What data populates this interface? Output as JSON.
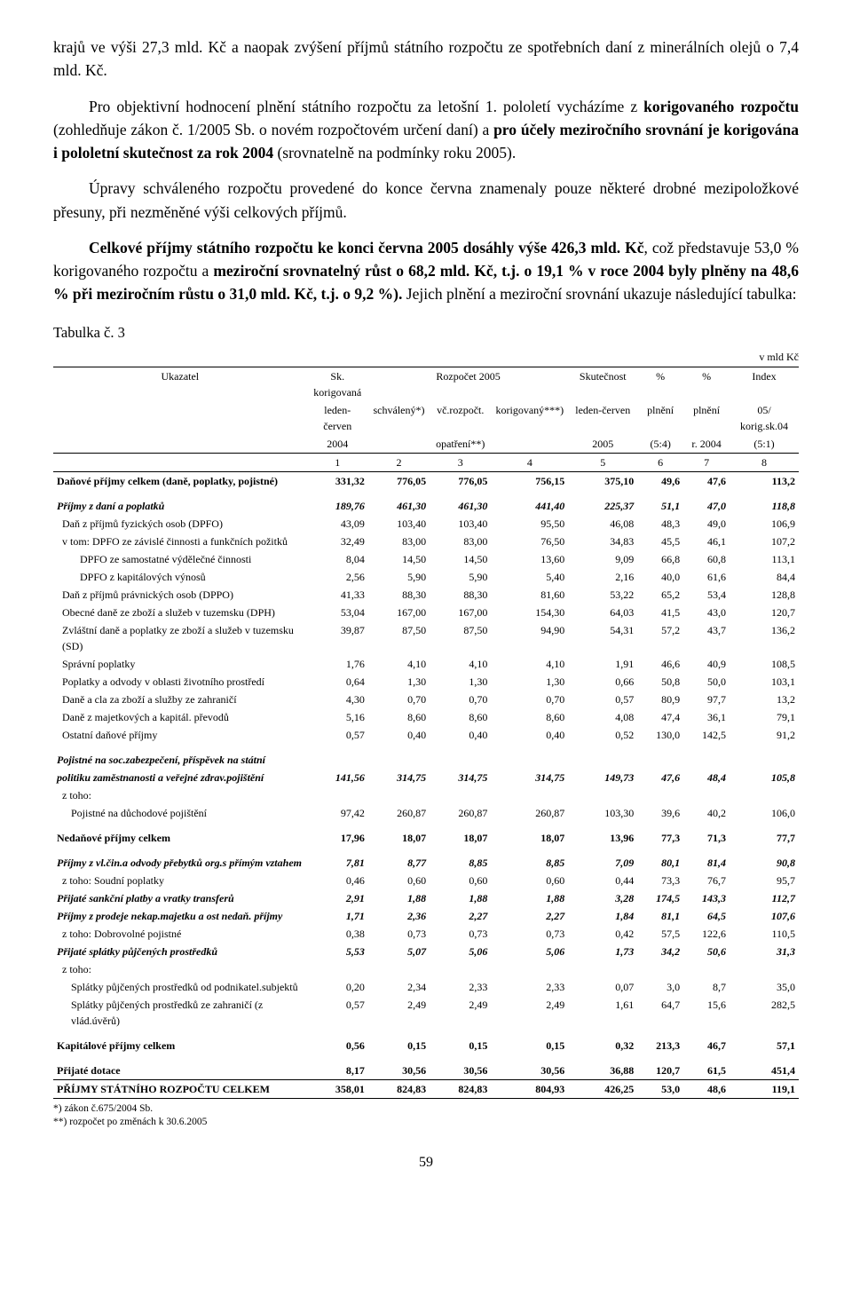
{
  "paragraphs": {
    "p1_html": "krajů ve výši 27,3 mld. Kč a naopak zvýšení příjmů státního rozpočtu ze spotřebních daní z minerálních olejů o 7,4 mld. Kč.",
    "p2_html": "Pro objektivní hodnocení plnění státního rozpočtu za letošní 1. pololetí vycházíme z <b>korigovaného rozpočtu</b> (zohledňuje zákon č. 1/2005 Sb. o novém rozpočtovém určení daní) a <b>pro účely meziročního srovnání je korigována i pololetní skutečnost za rok 2004</b> (srovnatelně na podmínky roku 2005).",
    "p3_html": "Úpravy schváleného rozpočtu provedené do konce června znamenaly pouze některé drobné mezipoložkové přesuny, při nezměněné výši celkových příjmů.",
    "p4_html": "<b>Celkové příjmy státního rozpočtu ke konci června 2005 dosáhly výše 426,3 mld. Kč</b>, což představuje 53,0 % korigovaného rozpočtu a <b>meziroční srovnatelný růst o 68,2 mld. Kč, t.j. o 19,1 % v roce 2004 byly plněny na 48,6 % při meziročním růstu o 31,0 mld. Kč, t.j. o 9,2 %).</b> Jejich plnění a meziroční srovnání ukazuje následující tabulka:"
  },
  "table_caption": "Tabulka č. 3",
  "units_label": "v mld Kč",
  "header": {
    "col1": "Ukazatel",
    "col2a": "Sk. korigovaná",
    "col2b": "leden-červen",
    "col2c": "2004",
    "col_rozpocet": "Rozpočet 2005",
    "col3": "schválený*)",
    "col4a": "vč.rozpočt.",
    "col4b": "opatření**)",
    "col5": "korigovaný***)",
    "col6a": "Skutečnost",
    "col6b": "leden-červen",
    "col6c": "2005",
    "col7a": "%",
    "col7b": "plnění",
    "col7c": "(5:4)",
    "col8a": "%",
    "col8b": "plnění",
    "col8c": "r. 2004",
    "col9a": "Index",
    "col9b": "05/ korig.sk.04",
    "col9c": "(5:1)",
    "n1": "1",
    "n2": "2",
    "n3": "3",
    "n4": "4",
    "n5": "5",
    "n6": "6",
    "n7": "7",
    "n8": "8"
  },
  "rows": [
    {
      "label": "Daňové příjmy celkem (daně, poplatky, pojistné)",
      "style": "bold",
      "v": [
        "331,32",
        "776,05",
        "776,05",
        "756,15",
        "375,10",
        "49,6",
        "47,6",
        "113,2"
      ]
    },
    {
      "spacer": true
    },
    {
      "label": "Příjmy z daní a poplatků",
      "style": "bolditalic",
      "v": [
        "189,76",
        "461,30",
        "461,30",
        "441,40",
        "225,37",
        "51,1",
        "47,0",
        "118,8"
      ]
    },
    {
      "label": "Daň z příjmů fyzických osob (DPFO)",
      "indent": 1,
      "v": [
        "43,09",
        "103,40",
        "103,40",
        "95,50",
        "46,08",
        "48,3",
        "49,0",
        "106,9"
      ]
    },
    {
      "label": "v tom: DPFO ze závislé činnosti a funkčních požitků",
      "indent": 1,
      "v": [
        "32,49",
        "83,00",
        "83,00",
        "76,50",
        "34,83",
        "45,5",
        "46,1",
        "107,2"
      ]
    },
    {
      "label": "DPFO ze samostatné výdělečné činnosti",
      "indent": 3,
      "v": [
        "8,04",
        "14,50",
        "14,50",
        "13,60",
        "9,09",
        "66,8",
        "60,8",
        "113,1"
      ]
    },
    {
      "label": "DPFO z kapitálových výnosů",
      "indent": 3,
      "v": [
        "2,56",
        "5,90",
        "5,90",
        "5,40",
        "2,16",
        "40,0",
        "61,6",
        "84,4"
      ]
    },
    {
      "label": "Daň z příjmů právnických osob (DPPO)",
      "indent": 1,
      "v": [
        "41,33",
        "88,30",
        "88,30",
        "81,60",
        "53,22",
        "65,2",
        "53,4",
        "128,8"
      ]
    },
    {
      "label": "Obecné daně ze zboží a služeb v tuzemsku (DPH)",
      "indent": 1,
      "v": [
        "53,04",
        "167,00",
        "167,00",
        "154,30",
        "64,03",
        "41,5",
        "43,0",
        "120,7"
      ]
    },
    {
      "label": "Zvláštní daně a poplatky ze zboží a služeb v tuzemsku (SD)",
      "indent": 1,
      "v": [
        "39,87",
        "87,50",
        "87,50",
        "94,90",
        "54,31",
        "57,2",
        "43,7",
        "136,2"
      ]
    },
    {
      "label": "Správní poplatky",
      "indent": 1,
      "v": [
        "1,76",
        "4,10",
        "4,10",
        "4,10",
        "1,91",
        "46,6",
        "40,9",
        "108,5"
      ]
    },
    {
      "label": "Poplatky a odvody v oblasti životního prostředí",
      "indent": 1,
      "v": [
        "0,64",
        "1,30",
        "1,30",
        "1,30",
        "0,66",
        "50,8",
        "50,0",
        "103,1"
      ]
    },
    {
      "label": "Daně a cla za zboží a služby ze zahraničí",
      "indent": 1,
      "v": [
        "4,30",
        "0,70",
        "0,70",
        "0,70",
        "0,57",
        "80,9",
        "97,7",
        "13,2"
      ]
    },
    {
      "label": "Daně z majetkových a kapitál. převodů",
      "indent": 1,
      "v": [
        "5,16",
        "8,60",
        "8,60",
        "8,60",
        "4,08",
        "47,4",
        "36,1",
        "79,1"
      ]
    },
    {
      "label": "Ostatní daňové příjmy",
      "indent": 1,
      "v": [
        "0,57",
        "0,40",
        "0,40",
        "0,40",
        "0,52",
        "130,0",
        "142,5",
        "91,2"
      ]
    },
    {
      "spacer": true
    },
    {
      "label": "Pojistné na soc.zabezpečení, příspěvek na státní",
      "style": "bolditalic",
      "v": [
        "",
        "",
        "",
        "",
        "",
        "",
        "",
        ""
      ]
    },
    {
      "label": "politiku zaměstnanosti a veřejné zdrav.pojištění",
      "style": "bolditalic",
      "v": [
        "141,56",
        "314,75",
        "314,75",
        "314,75",
        "149,73",
        "47,6",
        "48,4",
        "105,8"
      ]
    },
    {
      "label": "z toho:",
      "indent": 1,
      "v": [
        "",
        "",
        "",
        "",
        "",
        "",
        "",
        ""
      ]
    },
    {
      "label": "Pojistné na důchodové pojištění",
      "indent": 2,
      "v": [
        "97,42",
        "260,87",
        "260,87",
        "260,87",
        "103,30",
        "39,6",
        "40,2",
        "106,0"
      ]
    },
    {
      "spacer": true
    },
    {
      "label": "Nedaňové příjmy celkem",
      "style": "bold",
      "v": [
        "17,96",
        "18,07",
        "18,07",
        "18,07",
        "13,96",
        "77,3",
        "71,3",
        "77,7"
      ]
    },
    {
      "spacer": true
    },
    {
      "label": "Příjmy z vl.čin.a odvody přebytků org.s přímým vztahem",
      "style": "bolditalic",
      "v": [
        "7,81",
        "8,77",
        "8,85",
        "8,85",
        "7,09",
        "80,1",
        "81,4",
        "90,8"
      ]
    },
    {
      "label": "z toho:  Soudní poplatky",
      "indent": 1,
      "v": [
        "0,46",
        "0,60",
        "0,60",
        "0,60",
        "0,44",
        "73,3",
        "76,7",
        "95,7"
      ]
    },
    {
      "label": "Přijaté sankční platby a vratky transferů",
      "style": "bolditalic",
      "v": [
        "2,91",
        "1,88",
        "1,88",
        "1,88",
        "3,28",
        "174,5",
        "143,3",
        "112,7"
      ]
    },
    {
      "label": "Příjmy z prodeje nekap.majetku a ost nedaň. příjmy",
      "style": "bolditalic",
      "v": [
        "1,71",
        "2,36",
        "2,27",
        "2,27",
        "1,84",
        "81,1",
        "64,5",
        "107,6"
      ]
    },
    {
      "label": "z toho:  Dobrovolné pojistné",
      "indent": 1,
      "v": [
        "0,38",
        "0,73",
        "0,73",
        "0,73",
        "0,42",
        "57,5",
        "122,6",
        "110,5"
      ]
    },
    {
      "label": "Přijaté splátky půjčených prostředků",
      "style": "bolditalic",
      "v": [
        "5,53",
        "5,07",
        "5,06",
        "5,06",
        "1,73",
        "34,2",
        "50,6",
        "31,3"
      ]
    },
    {
      "label": "z toho:",
      "indent": 1,
      "v": [
        "",
        "",
        "",
        "",
        "",
        "",
        "",
        ""
      ]
    },
    {
      "label": "Splátky půjčených prostředků od podnikatel.subjektů",
      "indent": 2,
      "v": [
        "0,20",
        "2,34",
        "2,33",
        "2,33",
        "0,07",
        "3,0",
        "8,7",
        "35,0"
      ]
    },
    {
      "label": "Splátky půjčených prostředků ze zahraničí (z vlád.úvěrů)",
      "indent": 2,
      "v": [
        "0,57",
        "2,49",
        "2,49",
        "2,49",
        "1,61",
        "64,7",
        "15,6",
        "282,5"
      ]
    },
    {
      "spacer": true
    },
    {
      "label": "Kapitálové příjmy celkem",
      "style": "bold",
      "v": [
        "0,56",
        "0,15",
        "0,15",
        "0,15",
        "0,32",
        "213,3",
        "46,7",
        "57,1"
      ]
    },
    {
      "spacer": true
    },
    {
      "label": "Přijaté dotace",
      "style": "bold",
      "v": [
        "8,17",
        "30,56",
        "30,56",
        "30,56",
        "36,88",
        "120,7",
        "61,5",
        "451,4"
      ]
    }
  ],
  "total_row": {
    "label": "PŘÍJMY STÁTNÍHO ROZPOČTU CELKEM",
    "v": [
      "358,01",
      "824,83",
      "824,83",
      "804,93",
      "426,25",
      "53,0",
      "48,6",
      "119,1"
    ]
  },
  "footnotes": {
    "f1": "*) zákon č.675/2004 Sb.",
    "f2": "**) rozpočet po změnách k 30.6.2005"
  },
  "page_number": "59"
}
